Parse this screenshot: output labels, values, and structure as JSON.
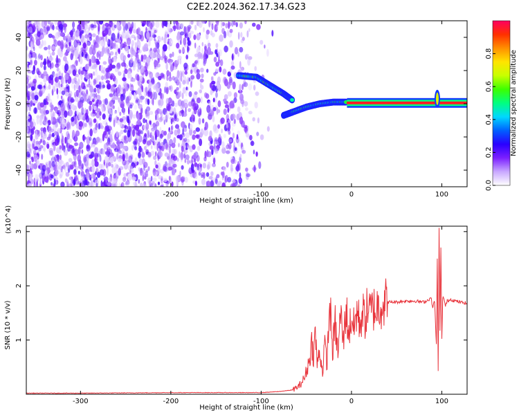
{
  "chart_data": [
    {
      "type": "heatmap",
      "title": "C2E2.2024.362.17.34.G23",
      "xlabel": "Height of straight line (km)",
      "ylabel": "Frequency (Hz)",
      "xlim": [
        -360,
        128
      ],
      "ylim": [
        -50,
        50
      ],
      "x_ticks": [
        -300,
        -200,
        -100,
        0,
        100
      ],
      "y_ticks": [
        -40,
        -20,
        0,
        20,
        40
      ],
      "grid": false,
      "colorbar": {
        "label": "Normalized spectral amplitude",
        "range": [
          0,
          1
        ],
        "ticks": [
          "0.0",
          "0.2",
          "0.4",
          "0.6",
          "0.8"
        ],
        "colormap": [
          "#ffffff",
          "#c9a8ff",
          "#7b1fff",
          "#2a00ff",
          "#0060ff",
          "#00d8ff",
          "#00ff80",
          "#3cff00",
          "#c8ff00",
          "#ffe400",
          "#ff9000",
          "#ff3000",
          "#ff0060"
        ]
      },
      "regions": [
        {
          "description": "diffuse noise",
          "x_range": [
            -360,
            -82
          ],
          "freq_range": [
            -50,
            50
          ],
          "amplitude": [
            0.0,
            0.2
          ]
        },
        {
          "description": "descending track upper",
          "x": [
            -125,
            -105,
            -90,
            -75,
            -65
          ],
          "freq": [
            17,
            16,
            11,
            6,
            2
          ],
          "amplitude": 0.5
        },
        {
          "description": "descending track lower",
          "x": [
            -75,
            -65,
            -50,
            -35,
            -20,
            -5
          ],
          "freq": [
            -7,
            -5,
            -2,
            0,
            1,
            1
          ],
          "amplitude": 0.45
        },
        {
          "description": "steady line",
          "x_range": [
            -5,
            128
          ],
          "freq": 0.5,
          "amplitude": 0.95
        },
        {
          "description": "spike",
          "x": 95,
          "freq_range": [
            -3,
            9
          ],
          "amplitude": 0.7
        }
      ]
    },
    {
      "type": "line",
      "xlabel": "Height of straight line (km)",
      "ylabel": "SNR (10 * v/v)",
      "y_multiplier": "(x10^4)",
      "xlim": [
        -360,
        128
      ],
      "ylim": [
        0,
        3.1
      ],
      "x_ticks": [
        -300,
        -200,
        -100,
        0,
        100
      ],
      "y_ticks": [
        1,
        2,
        3
      ],
      "grid": false,
      "color": "#e8333b",
      "series": [
        {
          "x": [
            -360,
            -300,
            -200,
            -100,
            -80,
            -65,
            -58,
            -52,
            -47,
            -44,
            -42,
            -40,
            -38,
            -35,
            -32,
            -30,
            -27,
            -24,
            -21,
            -18,
            -15,
            -12,
            -9,
            -6,
            -3,
            0,
            3,
            6,
            9,
            12,
            15,
            18,
            21,
            24,
            27,
            30,
            35,
            40,
            50,
            60,
            70,
            80,
            85,
            88,
            90,
            92,
            94,
            95,
            96,
            97,
            98,
            99,
            100,
            101,
            102,
            104,
            106,
            110,
            115,
            120,
            128
          ],
          "y": [
            0.02,
            0.02,
            0.03,
            0.03,
            0.05,
            0.08,
            0.15,
            0.3,
            0.6,
            0.95,
            0.7,
            1.15,
            0.55,
            0.8,
            0.4,
            0.9,
            0.6,
            1.7,
            0.8,
            1.3,
            0.75,
            1.5,
            0.95,
            1.6,
            1.1,
            1.45,
            1.2,
            1.55,
            1.3,
            1.5,
            1.4,
            1.6,
            1.5,
            1.6,
            1.55,
            1.65,
            1.68,
            1.7,
            1.7,
            1.72,
            1.72,
            1.7,
            1.74,
            1.78,
            1.6,
            1.72,
            0.9,
            2.5,
            0.45,
            3.05,
            1.2,
            2.7,
            1.0,
            1.75,
            1.8,
            1.62,
            1.72,
            1.75,
            1.72,
            1.7,
            1.68
          ]
        }
      ]
    }
  ]
}
